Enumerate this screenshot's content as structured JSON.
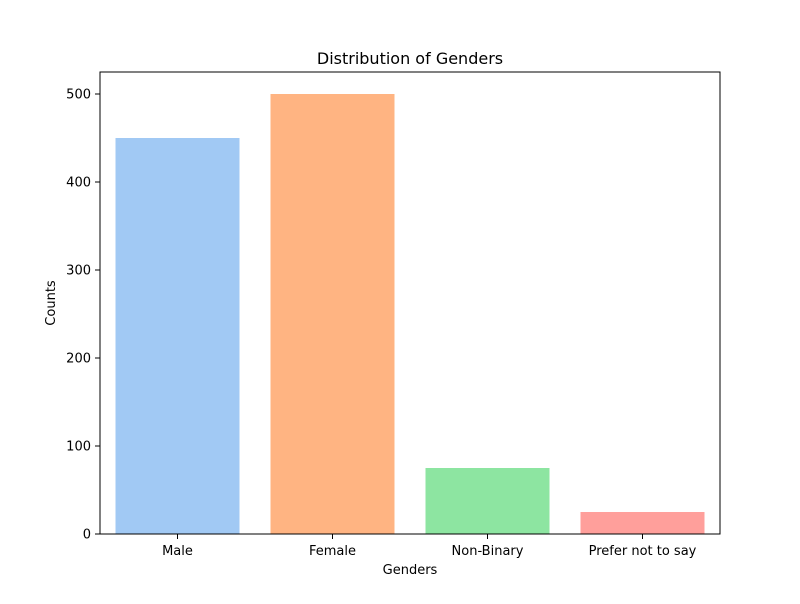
{
  "chart_data": {
    "type": "bar",
    "title": "Distribution of Genders",
    "xlabel": "Genders",
    "ylabel": "Counts",
    "categories": [
      "Male",
      "Female",
      "Non-Binary",
      "Prefer not to say"
    ],
    "values": [
      450,
      500,
      75,
      25
    ],
    "colors": [
      "#a1c9f4",
      "#ffb482",
      "#8de5a1",
      "#ff9f9b"
    ],
    "ylim": [
      0,
      525
    ],
    "yticks": [
      0,
      100,
      200,
      300,
      400,
      500
    ],
    "grid": false,
    "legend": "none"
  }
}
